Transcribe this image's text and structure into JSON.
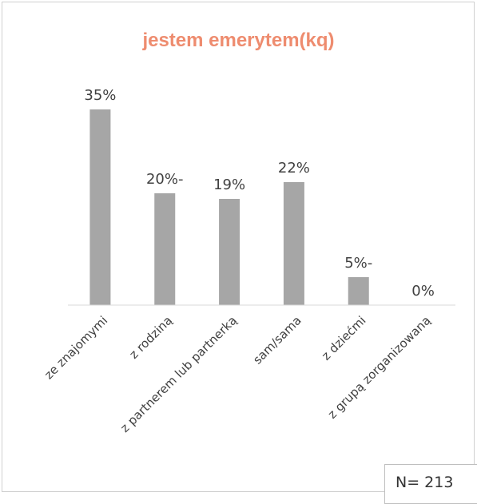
{
  "chart_data": {
    "type": "bar",
    "title": "jestem emerytem(kq)",
    "categories": [
      "ze znajomymi",
      "z rodziną",
      "z partnerem lub partnerką",
      "sam/sama",
      "z dziećmi",
      "z grupą zorganizowaną"
    ],
    "values": [
      35,
      20,
      19,
      22,
      5,
      0
    ],
    "data_labels": [
      "35%",
      "20%-",
      "19%",
      "22%",
      "5%-",
      "0%"
    ],
    "ylim": [
      0,
      35
    ],
    "grid": false,
    "legend": "none",
    "colors": {
      "bar": "#a6a6a6",
      "title": "#ee8c6f",
      "axis": "#d9d9d9",
      "text": "#404040"
    }
  },
  "note": "N= 213"
}
